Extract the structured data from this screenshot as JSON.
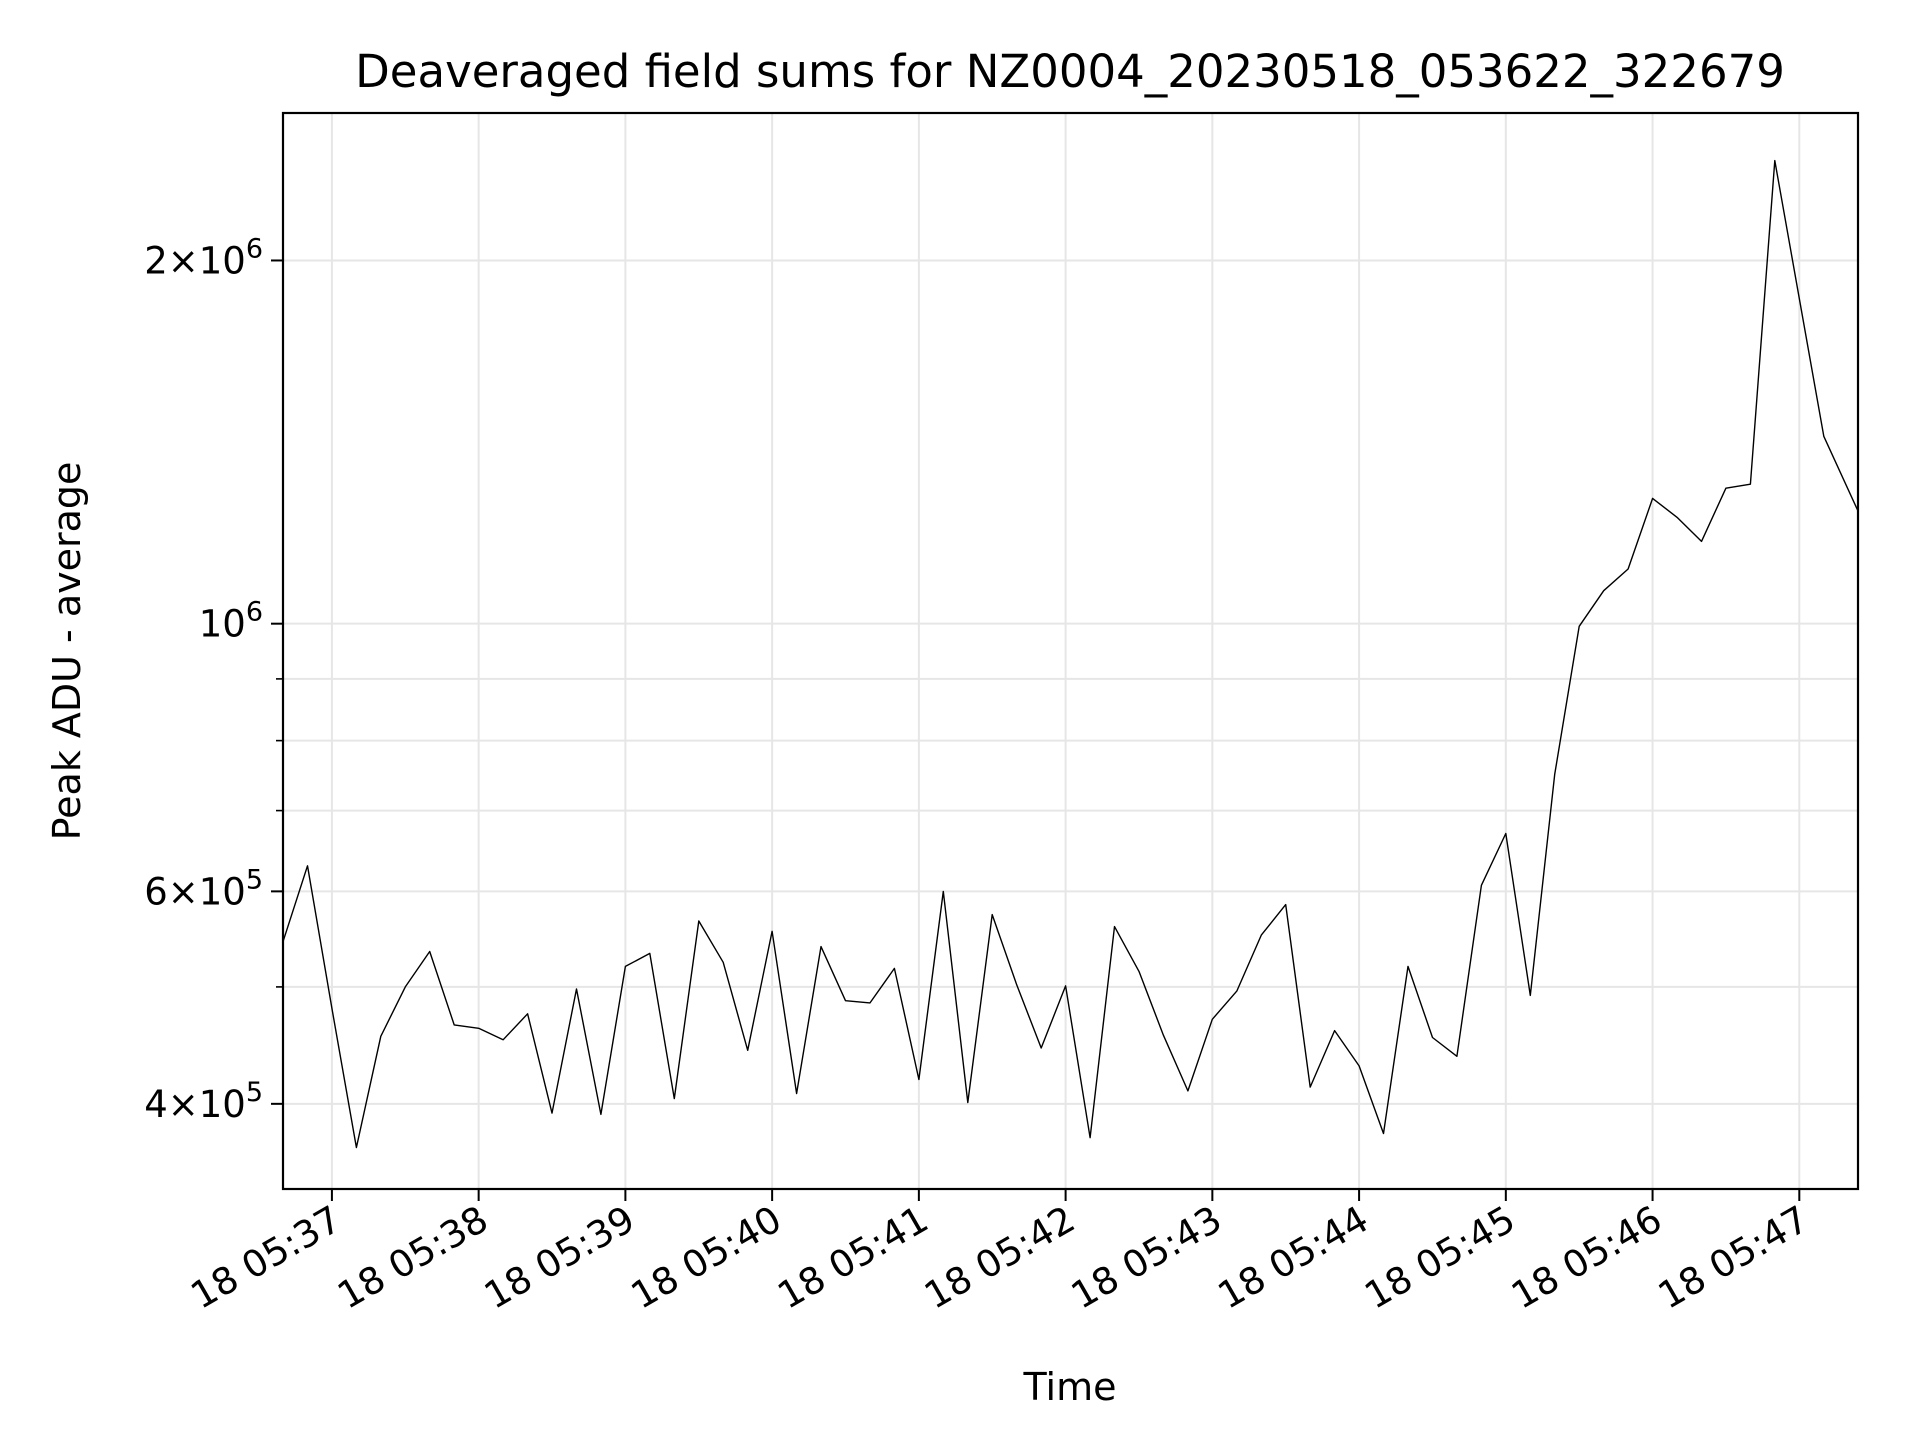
{
  "chart_data": {
    "type": "line",
    "title": "Deaveraged field sums for NZ0004_20230518_053622_322679",
    "xlabel": "Time",
    "ylabel": "Peak ADU - average",
    "y_scale": "log",
    "ylim": [
      340000,
      2650000
    ],
    "grid": true,
    "line_color": "#000000",
    "grid_color": "#e6e6e6",
    "x_ticks": [
      {
        "label": "18 05:37",
        "time": "2023-05-18T05:37:00"
      },
      {
        "label": "18 05:38",
        "time": "2023-05-18T05:38:00"
      },
      {
        "label": "18 05:39",
        "time": "2023-05-18T05:39:00"
      },
      {
        "label": "18 05:40",
        "time": "2023-05-18T05:40:00"
      },
      {
        "label": "18 05:41",
        "time": "2023-05-18T05:41:00"
      },
      {
        "label": "18 05:42",
        "time": "2023-05-18T05:42:00"
      },
      {
        "label": "18 05:43",
        "time": "2023-05-18T05:43:00"
      },
      {
        "label": "18 05:44",
        "time": "2023-05-18T05:44:00"
      },
      {
        "label": "18 05:45",
        "time": "2023-05-18T05:45:00"
      },
      {
        "label": "18 05:46",
        "time": "2023-05-18T05:46:00"
      },
      {
        "label": "18 05:47",
        "time": "2023-05-18T05:47:00"
      }
    ],
    "xlim": [
      "2023-05-18T05:36:40",
      "2023-05-18T05:47:24"
    ],
    "y_major_ticks": [
      {
        "value": 400000,
        "mantissa": "4",
        "exponent": "5"
      },
      {
        "value": 600000,
        "mantissa": "6",
        "exponent": "5"
      },
      {
        "value": 1000000,
        "mantissa": "",
        "exponent": "6"
      },
      {
        "value": 2000000,
        "mantissa": "2",
        "exponent": "6"
      }
    ],
    "y_minor_ticks": [
      500000,
      700000,
      800000,
      900000
    ],
    "series": [
      {
        "x": [
          "2023-05-18T05:36:40",
          "2023-05-18T05:36:50",
          "2023-05-18T05:37:00",
          "2023-05-18T05:37:10",
          "2023-05-18T05:37:20",
          "2023-05-18T05:37:30",
          "2023-05-18T05:37:40",
          "2023-05-18T05:37:50",
          "2023-05-18T05:38:00",
          "2023-05-18T05:38:10",
          "2023-05-18T05:38:20",
          "2023-05-18T05:38:30",
          "2023-05-18T05:38:40",
          "2023-05-18T05:38:50",
          "2023-05-18T05:39:00",
          "2023-05-18T05:39:10",
          "2023-05-18T05:39:20",
          "2023-05-18T05:39:30",
          "2023-05-18T05:39:40",
          "2023-05-18T05:39:50",
          "2023-05-18T05:40:00",
          "2023-05-18T05:40:10",
          "2023-05-18T05:40:20",
          "2023-05-18T05:40:30",
          "2023-05-18T05:40:40",
          "2023-05-18T05:40:50",
          "2023-05-18T05:41:00",
          "2023-05-18T05:41:10",
          "2023-05-18T05:41:20",
          "2023-05-18T05:41:30",
          "2023-05-18T05:41:40",
          "2023-05-18T05:41:50",
          "2023-05-18T05:42:00",
          "2023-05-18T05:42:10",
          "2023-05-18T05:42:20",
          "2023-05-18T05:42:30",
          "2023-05-18T05:42:40",
          "2023-05-18T05:42:50",
          "2023-05-18T05:43:00",
          "2023-05-18T05:43:10",
          "2023-05-18T05:43:20",
          "2023-05-18T05:43:30",
          "2023-05-18T05:43:40",
          "2023-05-18T05:43:50",
          "2023-05-18T05:44:00",
          "2023-05-18T05:44:10",
          "2023-05-18T05:44:20",
          "2023-05-18T05:44:30",
          "2023-05-18T05:44:40",
          "2023-05-18T05:44:50",
          "2023-05-18T05:45:00",
          "2023-05-18T05:45:10",
          "2023-05-18T05:45:20",
          "2023-05-18T05:45:30",
          "2023-05-18T05:45:40",
          "2023-05-18T05:45:50",
          "2023-05-18T05:46:00",
          "2023-05-18T05:46:10",
          "2023-05-18T05:46:20",
          "2023-05-18T05:46:30",
          "2023-05-18T05:46:40",
          "2023-05-18T05:46:50",
          "2023-05-18T05:47:00",
          "2023-05-18T05:47:10",
          "2023-05-18T05:47:24"
        ],
        "values": [
          545000,
          630000,
          480000,
          368000,
          455000,
          500000,
          535000,
          465000,
          462000,
          452000,
          475000,
          393000,
          498000,
          392000,
          520000,
          533000,
          404000,
          567000,
          524000,
          443000,
          556000,
          408000,
          540000,
          487000,
          485000,
          518000,
          419000,
          600000,
          401000,
          574000,
          502000,
          445000,
          501000,
          375000,
          561000,
          515000,
          456000,
          410000,
          470000,
          496000,
          552000,
          585000,
          413000,
          460000,
          430000,
          378000,
          520000,
          454000,
          438000,
          607000,
          670000,
          492000,
          750000,
          995000,
          1065000,
          1110000,
          1270000,
          1225000,
          1170000,
          1295000,
          1305000,
          2420000,
          1860000,
          1430000,
          1240000
        ]
      }
    ]
  }
}
